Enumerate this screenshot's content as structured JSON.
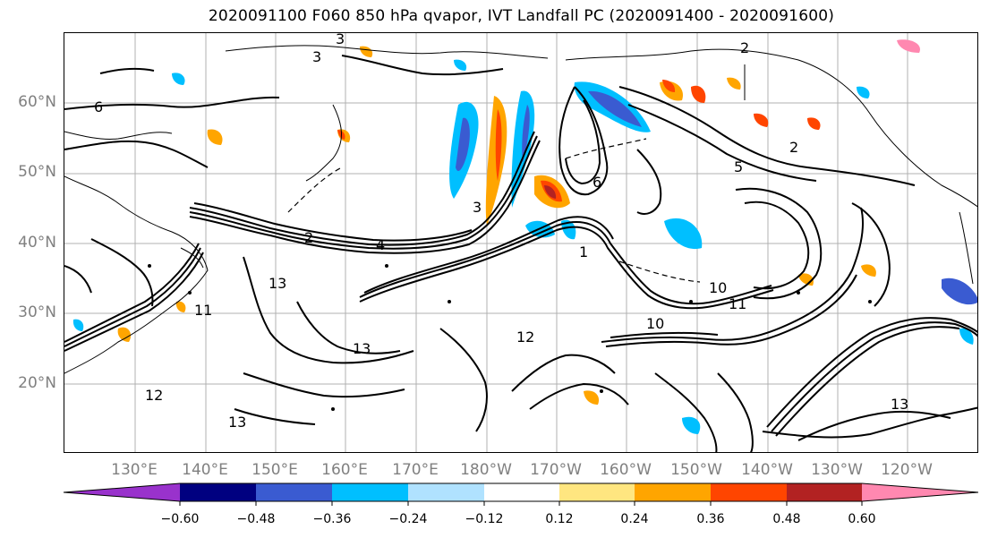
{
  "title": "2020091100 F060 850 hPa qvapor, IVT Landfall PC (2020091400 - 2020091600)",
  "lat_labels": [
    "60°N",
    "50°N",
    "40°N",
    "30°N",
    "20°N"
  ],
  "lon_labels": [
    "130°E",
    "140°E",
    "150°E",
    "160°E",
    "170°E",
    "180°W",
    "170°W",
    "160°W",
    "150°W",
    "140°W",
    "130°W",
    "120°W"
  ],
  "contour_labels": [
    "3",
    "3",
    "6",
    "2",
    "2",
    "5",
    "2",
    "4",
    "3",
    "6",
    "1",
    "13",
    "13",
    "11",
    "12",
    "10",
    "11",
    "10",
    "13",
    "13",
    "12"
  ],
  "colorbar": {
    "ticks": [
      "−0.60",
      "−0.48",
      "−0.36",
      "−0.24",
      "−0.12",
      "0.12",
      "0.24",
      "0.36",
      "0.48",
      "0.60"
    ],
    "colors": [
      "#9932cc",
      "#000080",
      "#3a5bd1",
      "#00bfff",
      "#b0e2ff",
      "#ffffff",
      "#ffe680",
      "#ffa500",
      "#ff4500",
      "#b22222",
      "#ff88b0"
    ]
  }
}
